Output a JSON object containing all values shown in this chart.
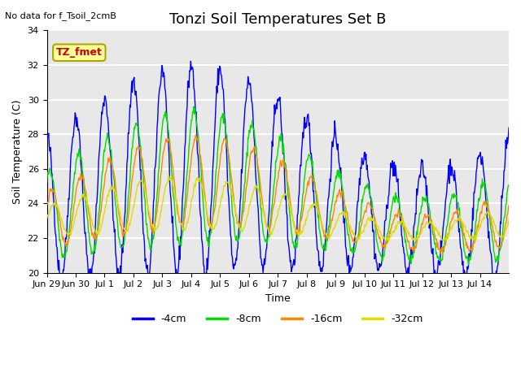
{
  "title": "Tonzi Soil Temperatures Set B",
  "xlabel": "Time",
  "ylabel": "Soil Temperature (C)",
  "no_data_text": "No data for f_Tsoil_2cmB",
  "legend_label_text": "TZ_fmet",
  "ylim": [
    20,
    34
  ],
  "yticks": [
    20,
    22,
    24,
    26,
    28,
    30,
    32,
    34
  ],
  "xtick_labels": [
    "Jun 29",
    "Jun 30",
    "Jul 1",
    "Jul 2",
    "Jul 3",
    "Jul 4",
    "Jul 5",
    "Jul 6",
    "Jul 7",
    "Jul 8",
    "Jul 9",
    "Jul 10",
    "Jul 11",
    "Jul 12",
    "Jul 13",
    "Jul 14"
  ],
  "colors": {
    "4cm": "#0000ff",
    "8cm": "#00dd00",
    "16cm": "#ff8800",
    "32cm": "#dddd00"
  },
  "legend_entries": [
    "-4cm",
    "-8cm",
    "-16cm",
    "-32cm"
  ],
  "bg_color": "#e8e8e8",
  "grid_color": "#ffffff",
  "title_fontsize": 13,
  "axis_label_fontsize": 9,
  "tick_fontsize": 8
}
